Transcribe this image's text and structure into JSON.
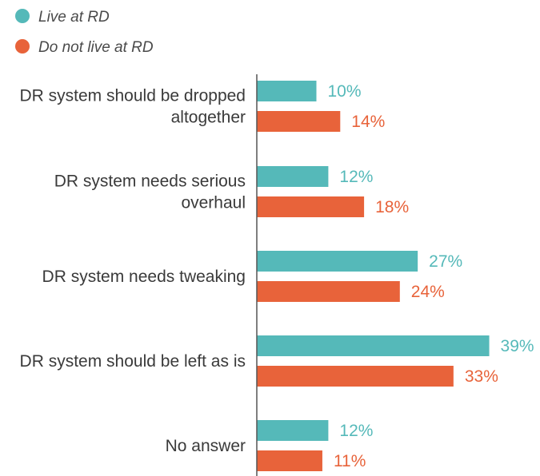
{
  "colors": {
    "series_a": "#55b9b9",
    "series_b": "#e8633a",
    "axis": "#555555"
  },
  "legend": {
    "items": [
      {
        "label": "Live at RD",
        "color_key": "series_a"
      },
      {
        "label": "Do not live at RD",
        "color_key": "series_b"
      }
    ]
  },
  "chart_data": {
    "type": "bar",
    "orientation": "horizontal",
    "title": "",
    "xlabel": "",
    "ylabel": "",
    "value_suffix": "%",
    "legend_position": "top-left",
    "grid": false,
    "categories": [
      [
        "DR system should be dropped",
        "altogether"
      ],
      [
        "DR system needs serious",
        "overhaul"
      ],
      [
        "DR system needs tweaking"
      ],
      [
        "DR system should be left as is"
      ],
      [
        "No answer"
      ]
    ],
    "series": [
      {
        "name": "Live at RD",
        "values": [
          10,
          12,
          27,
          39,
          12
        ]
      },
      {
        "name": "Do not live at RD",
        "values": [
          14,
          18,
          24,
          33,
          11
        ]
      }
    ]
  }
}
